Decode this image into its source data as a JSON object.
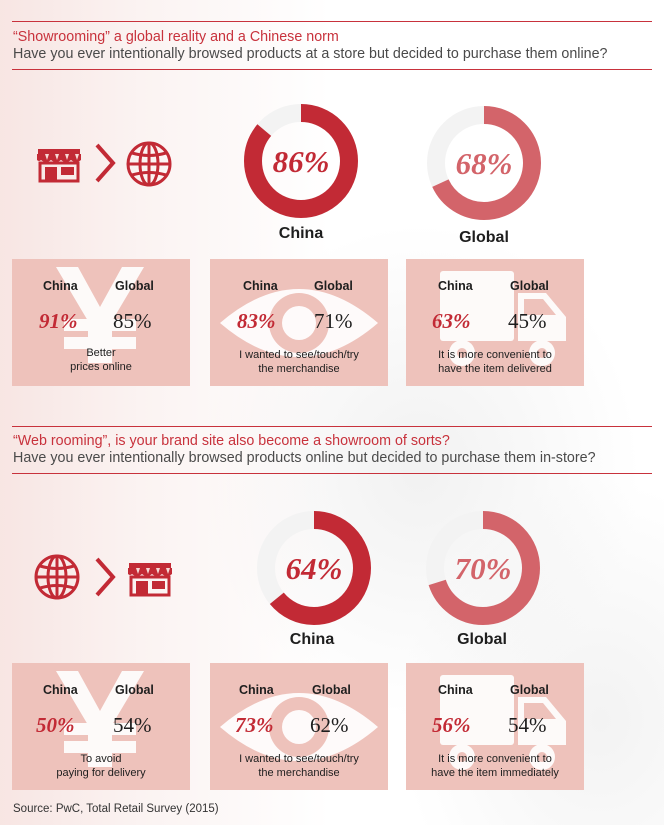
{
  "colors": {
    "china_ring": "#c22a35",
    "global_ring": "#d3646a",
    "ring_track": "#f3f3f3",
    "card_bg": "#eec2bb",
    "accent": "#c8323c"
  },
  "section1": {
    "title": "“Showrooming” a global reality and a Chinese norm",
    "subtitle": "Have you ever intentionally browsed products at a store but decided to purchase them online?",
    "flow_icons": [
      "store-icon",
      "chevron-right-icon",
      "globe-icon"
    ],
    "china": {
      "pct": "86%",
      "value": 86,
      "label": "China"
    },
    "global": {
      "pct": "68%",
      "value": 68,
      "label": "Global"
    },
    "cards": [
      {
        "icon": "yen-icon",
        "china_label": "China",
        "global_label": "Global",
        "china_pct": "91%",
        "global_pct": "85%",
        "caption_line1": "Better",
        "caption_line2": "prices online"
      },
      {
        "icon": "eye-icon",
        "china_label": "China",
        "global_label": "Global",
        "china_pct": "83%",
        "global_pct": "71%",
        "caption_line1": "I wanted to see/touch/try",
        "caption_line2": "the merchandise"
      },
      {
        "icon": "truck-icon",
        "china_label": "China",
        "global_label": "Global",
        "china_pct": "63%",
        "global_pct": "45%",
        "caption_line1": "It is more convenient to",
        "caption_line2": "have the item delivered"
      }
    ]
  },
  "section2": {
    "title": "“Web rooming”, is your brand site also become a showroom of sorts?",
    "subtitle": "Have you ever intentionally browsed products online but decided to purchase them in-store?",
    "flow_icons": [
      "globe-icon",
      "chevron-right-icon",
      "store-icon"
    ],
    "china": {
      "pct": "64%",
      "value": 64,
      "label": "China"
    },
    "global": {
      "pct": "70%",
      "value": 70,
      "label": "Global"
    },
    "cards": [
      {
        "icon": "yen-icon",
        "china_label": "China",
        "global_label": "Global",
        "china_pct": "50%",
        "global_pct": "54%",
        "caption_line1": "To avoid",
        "caption_line2": "paying for delivery"
      },
      {
        "icon": "eye-icon",
        "china_label": "China",
        "global_label": "Global",
        "china_pct": "73%",
        "global_pct": "62%",
        "caption_line1": "I wanted to see/touch/try",
        "caption_line2": "the merchandise"
      },
      {
        "icon": "truck-icon",
        "china_label": "China",
        "global_label": "Global",
        "china_pct": "56%",
        "global_pct": "54%",
        "caption_line1": "It is more convenient to",
        "caption_line2": "have the item immediately"
      }
    ]
  },
  "source": "Source: PwC, Total Retail Survey (2015)"
}
